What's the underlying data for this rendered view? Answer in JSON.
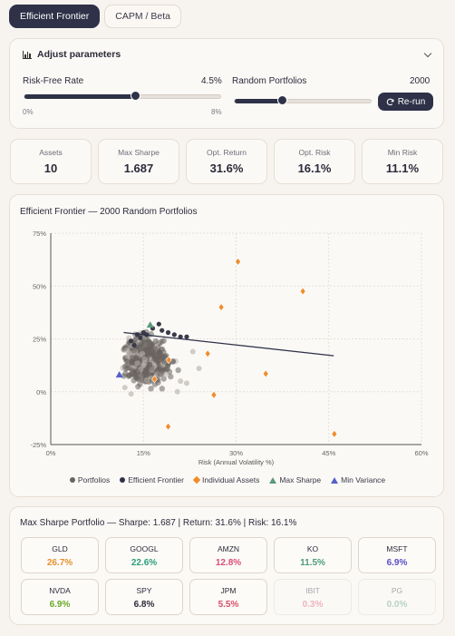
{
  "tabs": [
    {
      "label": "Efficient Frontier",
      "active": true
    },
    {
      "label": "CAPM / Beta",
      "active": false
    }
  ],
  "params": {
    "title": "Adjust parameters",
    "risk_free": {
      "label": "Risk-Free Rate",
      "value": "4.5%",
      "min": "0%",
      "max": "8%",
      "fraction": 0.5625
    },
    "random_portfolios": {
      "label": "Random Portfolios",
      "value": "2000",
      "fraction": 0.35
    },
    "rerun_label": "Re-run"
  },
  "stats": [
    {
      "label": "Assets",
      "value": "10"
    },
    {
      "label": "Max Sharpe",
      "value": "1.687"
    },
    {
      "label": "Opt. Return",
      "value": "31.6%"
    },
    {
      "label": "Opt. Risk",
      "value": "16.1%"
    },
    {
      "label": "Min Risk",
      "value": "11.1%"
    }
  ],
  "chart": {
    "title": "Efficient Frontier — 2000 Random Portfolios",
    "legend": [
      "Portfolios",
      "Efficient Frontier",
      "Individual Assets",
      "Max Sharpe",
      "Min Variance"
    ]
  },
  "chart_data": {
    "type": "scatter",
    "title": "Efficient Frontier — 2000 Random Portfolios",
    "xlabel": "Risk (Annual Volatility %)",
    "ylabel": "",
    "xlim": [
      0,
      60
    ],
    "ylim": [
      -25,
      75
    ],
    "xticks": [
      "0%",
      "15%",
      "30%",
      "45%",
      "60%"
    ],
    "yticks": [
      "75%",
      "50%",
      "25%",
      "0%",
      "-25%"
    ],
    "grid": true,
    "legend_position": "bottom",
    "colors": {
      "portfolios": "#6a6460",
      "frontier": "#2e3147",
      "assets": "#f08c2a",
      "max_sharpe": "#5a9a7e",
      "min_variance": "#5560c8"
    },
    "series": [
      {
        "name": "Individual Assets",
        "points": [
          [
            30.3,
            61.5
          ],
          [
            40.8,
            47.5
          ],
          [
            27.6,
            40
          ],
          [
            25.4,
            18
          ],
          [
            34.8,
            8.5
          ],
          [
            26.4,
            -1.5
          ],
          [
            19.1,
            15
          ],
          [
            16.8,
            6
          ],
          [
            19.0,
            -16.5
          ],
          [
            45.9,
            -20
          ]
        ]
      },
      {
        "name": "Efficient Frontier",
        "points": [
          [
            11.8,
            28
          ],
          [
            45.8,
            17
          ]
        ]
      },
      {
        "name": "Max Sharpe",
        "points": [
          [
            16.1,
            31.6
          ]
        ]
      },
      {
        "name": "Min Variance",
        "points": [
          [
            11.1,
            8
          ]
        ]
      },
      {
        "name": "Portfolios",
        "approx_cloud": {
          "x_range": [
            11,
            23
          ],
          "y_range": [
            0,
            33
          ],
          "count": 2000
        }
      }
    ]
  },
  "portfolio": {
    "title": "Max Sharpe Portfolio — Sharpe: 1.687 | Return: 31.6% | Risk: 16.1%",
    "weights": [
      {
        "ticker": "GLD",
        "pct": "26.7%",
        "color": "#e8902e"
      },
      {
        "ticker": "GOOGL",
        "pct": "22.6%",
        "color": "#2a9d7e"
      },
      {
        "ticker": "AMZN",
        "pct": "12.8%",
        "color": "#d84f7a"
      },
      {
        "ticker": "KO",
        "pct": "11.5%",
        "color": "#4e9b7c"
      },
      {
        "ticker": "MSFT",
        "pct": "6.9%",
        "color": "#5a4fc8"
      },
      {
        "ticker": "NVDA",
        "pct": "6.9%",
        "color": "#6aa82a"
      },
      {
        "ticker": "SPY",
        "pct": "6.8%",
        "color": "#2b2b3a"
      },
      {
        "ticker": "JPM",
        "pct": "5.5%",
        "color": "#d84f6a"
      },
      {
        "ticker": "IBIT",
        "pct": "0.3%",
        "color": "#d84f6a"
      },
      {
        "ticker": "PG",
        "pct": "0.0%",
        "color": "#4e9b7c"
      }
    ]
  }
}
